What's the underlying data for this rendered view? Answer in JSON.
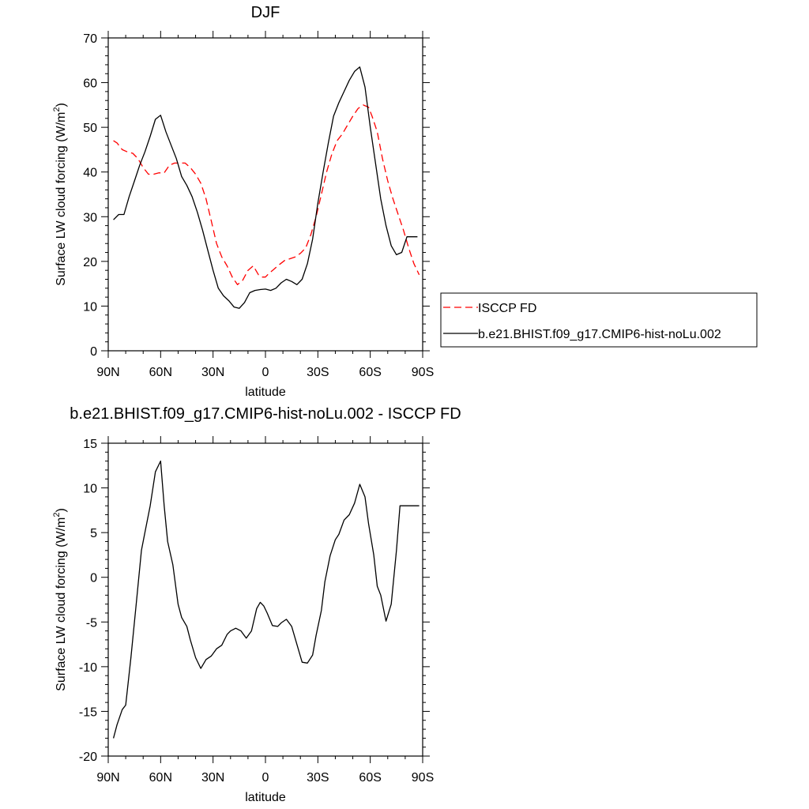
{
  "chart_data": [
    {
      "type": "line",
      "title": "DJF",
      "xlabel": "latitude",
      "ylabel": "Surface LW cloud forcing (W/m²)",
      "ylabel_main": "Surface LW cloud forcing (W/m",
      "ylabel_sup": "2",
      "ylabel_end": ")",
      "xlim": [
        90,
        -90
      ],
      "ylim": [
        0,
        70
      ],
      "xticks": [
        90,
        60,
        30,
        0,
        -30,
        -60,
        -90
      ],
      "xtick_labels": [
        "90N",
        "60N",
        "30N",
        "0",
        "30S",
        "60S",
        "90S"
      ],
      "yticks": [
        0,
        10,
        20,
        30,
        40,
        50,
        60,
        70
      ],
      "ytick_labels": [
        "0",
        "10",
        "20",
        "30",
        "40",
        "50",
        "60",
        "70"
      ],
      "legend_position": "right",
      "series": [
        {
          "name": "ISCCP FD",
          "color": "#ff0000",
          "dash": true,
          "x": [
            87,
            85,
            82,
            79,
            76,
            73,
            70,
            67,
            64,
            61,
            58,
            55,
            52,
            49,
            46,
            43,
            40,
            37,
            34,
            31,
            28,
            25,
            22,
            19,
            16,
            13,
            10,
            7,
            4,
            2,
            0,
            -2,
            -5,
            -8,
            -11,
            -14,
            -17,
            -20,
            -23,
            -26,
            -29,
            -32,
            -35,
            -38,
            -41,
            -44,
            -47,
            -50,
            -53,
            -56,
            -59,
            -61,
            -64,
            -67,
            -70,
            -73,
            -76,
            -79,
            -82,
            -85,
            -88
          ],
          "y": [
            47,
            46.5,
            45,
            44.5,
            44.2,
            43,
            41,
            39.5,
            39.5,
            39.8,
            39.8,
            41.5,
            42,
            42,
            42,
            41,
            39.5,
            37.5,
            34,
            29,
            24,
            21,
            19,
            16.5,
            14.8,
            15.8,
            18,
            19,
            17,
            16.5,
            16.5,
            17.3,
            18.3,
            19.3,
            20.2,
            20.6,
            21,
            21.8,
            23,
            26,
            30,
            35,
            40,
            44,
            47,
            48.5,
            50.5,
            52.5,
            54.2,
            55,
            54.5,
            52.5,
            49,
            43,
            38,
            34,
            30.5,
            27,
            23,
            19.5,
            17
          ]
        },
        {
          "name": "b.e21.BHIST.f09_g17.CMIP6-hist-noLu.002",
          "color": "#000000",
          "dash": false,
          "x": [
            87,
            84,
            81,
            78,
            75,
            72,
            69,
            66,
            63,
            60,
            57,
            54,
            51,
            48,
            45,
            42,
            39,
            36,
            33,
            30,
            27,
            24,
            21,
            18,
            15,
            12,
            9,
            6,
            3,
            0,
            -3,
            -6,
            -9,
            -12,
            -15,
            -18,
            -21,
            -24,
            -27,
            -30,
            -33,
            -36,
            -39,
            -42,
            -45,
            -48,
            -51,
            -54,
            -57,
            -60,
            -63,
            -66,
            -69,
            -72,
            -75,
            -78,
            -81,
            -84,
            -87
          ],
          "y": [
            29.3,
            30.5,
            30.5,
            34.5,
            38,
            41.5,
            44.5,
            48,
            51.8,
            52.7,
            49,
            46,
            43,
            39,
            37,
            34.5,
            31,
            27,
            22.5,
            18,
            14,
            12.3,
            11.2,
            9.8,
            9.5,
            10.8,
            13,
            13.5,
            13.7,
            13.8,
            13.5,
            14,
            15.2,
            16,
            15.5,
            14.8,
            16,
            19.5,
            25,
            33,
            40,
            46.5,
            52.5,
            55.5,
            58,
            60.5,
            62.5,
            63.5,
            59,
            50,
            42,
            34,
            28,
            23.5,
            21.5,
            22,
            25.5,
            25.5,
            25.5
          ]
        }
      ]
    },
    {
      "type": "line",
      "title": "b.e21.BHIST.f09_g17.CMIP6-hist-noLu.002 - ISCCP FD",
      "xlabel": "latitude",
      "ylabel": "Surface LW cloud forcing (W/m²)",
      "ylabel_main": "Surface LW cloud forcing (W/m",
      "ylabel_sup": "2",
      "ylabel_end": ")",
      "xlim": [
        90,
        -90
      ],
      "ylim": [
        -20,
        15
      ],
      "xticks": [
        90,
        60,
        30,
        0,
        -30,
        -60,
        -90
      ],
      "xtick_labels": [
        "90N",
        "60N",
        "30N",
        "0",
        "30S",
        "60S",
        "90S"
      ],
      "yticks": [
        -20,
        -15,
        -10,
        -5,
        0,
        5,
        10,
        15
      ],
      "ytick_labels": [
        "-20",
        "-15",
        "-10",
        "-5",
        "0",
        "5",
        "10",
        "15"
      ],
      "series": [
        {
          "color": "#000000",
          "dash": false,
          "x": [
            87,
            85,
            82,
            80,
            77,
            74,
            71,
            69,
            66,
            63,
            60,
            58,
            56,
            53,
            50,
            48,
            45,
            43,
            40,
            37,
            34,
            31,
            28,
            25,
            22,
            20,
            17,
            14,
            11,
            8,
            5,
            3,
            1,
            -1,
            -4,
            -7,
            -9,
            -12,
            -15,
            -18,
            -21,
            -24,
            -27,
            -29,
            -32,
            -34,
            -37,
            -40,
            -42,
            -45,
            -48,
            -51,
            -54,
            -57,
            -59,
            -62,
            -64,
            -66,
            -69,
            -72,
            -75,
            -77,
            -80,
            -83,
            -85,
            -88
          ],
          "y": [
            -18,
            -16.5,
            -14.8,
            -14.3,
            -9,
            -3,
            3,
            5,
            8,
            11.8,
            13,
            8,
            4,
            1.4,
            -3,
            -4.5,
            -5.5,
            -7,
            -9,
            -10.2,
            -9.2,
            -8.8,
            -8,
            -7.6,
            -6.4,
            -6,
            -5.7,
            -6,
            -6.8,
            -6,
            -3.5,
            -2.8,
            -3.2,
            -4,
            -5.4,
            -5.5,
            -5.1,
            -4.7,
            -5.5,
            -7.5,
            -9.5,
            -9.6,
            -8.7,
            -6.5,
            -3.7,
            -0.5,
            2.4,
            4.2,
            4.8,
            6.4,
            7,
            8.3,
            10.4,
            9,
            6,
            2.5,
            -1,
            -2,
            -4.9,
            -3,
            3,
            8,
            8,
            8,
            8,
            8
          ]
        }
      ]
    }
  ]
}
